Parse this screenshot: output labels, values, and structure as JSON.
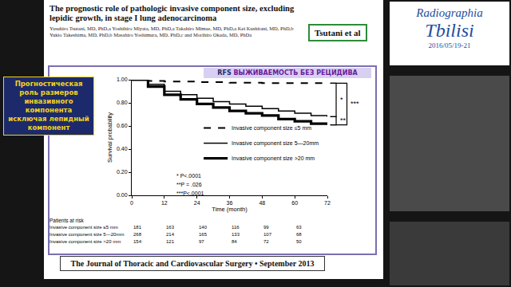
{
  "chart_data": {
    "type": "line",
    "title": "RFS",
    "subtitle": "ВЫЖИВАЕМОСТЬ БЕЗ РЕЦИДИВА",
    "x_label": "Time (month)",
    "y_label": "Survival probability",
    "x": [
      0,
      6,
      12,
      18,
      24,
      30,
      36,
      42,
      48,
      54,
      60,
      66,
      72
    ],
    "series": [
      {
        "name": "Invasive component size ≤5 mm",
        "color": "#000000",
        "line_style": "dash",
        "values": [
          1.0,
          0.99,
          0.985,
          0.985,
          0.98,
          0.98,
          0.975,
          0.975,
          0.97,
          0.97,
          0.97,
          0.97,
          0.97
        ]
      },
      {
        "name": "Invasive component size 5—20mm",
        "color": "#000000",
        "line_style": "solid",
        "values": [
          1.0,
          0.96,
          0.9,
          0.87,
          0.84,
          0.81,
          0.79,
          0.77,
          0.75,
          0.73,
          0.71,
          0.69,
          0.68
        ]
      },
      {
        "name": "Invasive component size >20 mm",
        "color": "#000000",
        "line_style": "thick",
        "values": [
          1.0,
          0.94,
          0.87,
          0.83,
          0.79,
          0.76,
          0.73,
          0.71,
          0.69,
          0.66,
          0.64,
          0.62,
          0.61
        ]
      }
    ],
    "xlim": [
      0,
      72
    ],
    "xticks": [
      0,
      12,
      24,
      36,
      48,
      60,
      72
    ],
    "ylim": [
      0,
      1
    ],
    "yticks": [
      {
        "value": 0,
        "label": "0.00"
      },
      {
        "value": 0.2,
        "label": "0.20"
      },
      {
        "value": 0.4,
        "label": "0.40"
      },
      {
        "value": 0.6,
        "label": "0.60"
      },
      {
        "value": 0.8,
        "label": "0.80"
      },
      {
        "value": 1,
        "label": "1.00"
      }
    ],
    "grid": false,
    "legend": "lower right",
    "annotations": [
      "* P<.0001",
      "**P = .026",
      "***P<.0001"
    ],
    "comparisons": [
      {
        "label": "*",
        "between": [
          "Invasive component size ≤5 mm",
          "Invasive component size 5—20mm"
        ]
      },
      {
        "label": "**",
        "between": [
          "Invasive component size 5—20mm",
          "Invasive component size >20 mm"
        ]
      },
      {
        "label": "***",
        "between": [
          "Invasive component size ≤5 mm",
          "Invasive component size >20 mm"
        ]
      }
    ],
    "at_risk": {
      "title": "Patients at risk",
      "x": [
        0,
        12,
        24,
        36,
        48,
        60
      ],
      "rows": [
        {
          "name": "Invasive component size ≤5 mm",
          "values": [
            181,
            163,
            140,
            116,
            99,
            63
          ]
        },
        {
          "name": "Invasive component size 5—20mm",
          "values": [
            268,
            214,
            165,
            133,
            107,
            68
          ]
        },
        {
          "name": "Invasive component size >20 mm",
          "values": [
            154,
            121,
            97,
            84,
            72,
            50
          ]
        }
      ]
    }
  },
  "slide": {
    "paper_title": "The prognostic role of pathologic invasive component size, excluding lepidic growth, in stage I lung adenocarcinoma",
    "authors": "Yasuhiro Tsutani, MD, PhD,a Yoshihiro Miyata, MD, PhD,a Takahiro Mimae, MD, PhD,a Kei Kushitani, MD, PhD,b Yukio Takeshima, MD, PhD,b Masahiro Yoshimura, MD, PhD,c and Morihito Okada, MD, PhDa",
    "tag": "Tsutani et al",
    "caption": "Прогностическая роль размеров инвазивного компонента исключая лепидный компонент",
    "journal": "The Journal of Thoracic and Cardiovascular Surgery • September 2013",
    "event": "Radiographia",
    "city": "Tbilisi",
    "date": "2016/05/19-21"
  }
}
